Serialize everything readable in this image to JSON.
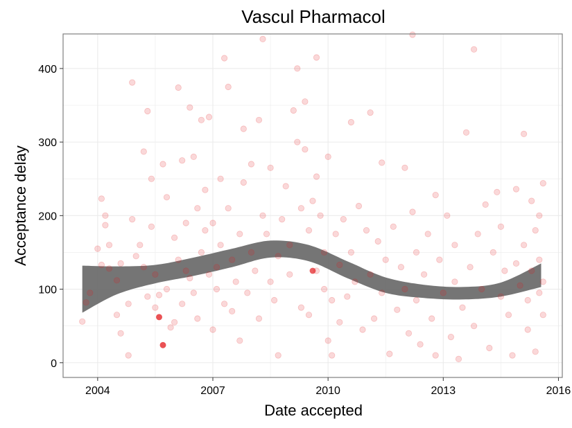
{
  "chart_data": {
    "type": "scatter",
    "title": "Vascul Pharmacol",
    "xlabel": "Date accepted",
    "ylabel": "Acceptance delay",
    "xlim": [
      2003.1,
      2016.1
    ],
    "ylim": [
      -20,
      447
    ],
    "x_ticks": [
      2004,
      2007,
      2010,
      2013,
      2016
    ],
    "y_ticks": [
      0,
      100,
      200,
      300,
      400
    ],
    "grid": true,
    "legend": "none",
    "colors": {
      "points": "#e31a1c",
      "band": "#6e6e6e",
      "grid": "#ebebeb",
      "frame": "#7f7f7f"
    },
    "points": [
      [
        2003.6,
        56
      ],
      [
        2003.7,
        82
      ],
      [
        2003.8,
        95
      ],
      [
        2004.0,
        155
      ],
      [
        2004.1,
        133
      ],
      [
        2004.1,
        223
      ],
      [
        2004.2,
        200
      ],
      [
        2004.2,
        187
      ],
      [
        2004.3,
        160
      ],
      [
        2004.3,
        128
      ],
      [
        2004.5,
        112
      ],
      [
        2004.5,
        65
      ],
      [
        2004.6,
        40
      ],
      [
        2004.6,
        135
      ],
      [
        2004.8,
        80
      ],
      [
        2004.8,
        10
      ],
      [
        2004.9,
        381
      ],
      [
        2004.9,
        195
      ],
      [
        2005.0,
        145
      ],
      [
        2005.1,
        160
      ],
      [
        2005.2,
        287
      ],
      [
        2005.2,
        130
      ],
      [
        2005.3,
        342
      ],
      [
        2005.3,
        90
      ],
      [
        2005.4,
        250
      ],
      [
        2005.4,
        185
      ],
      [
        2005.5,
        120
      ],
      [
        2005.5,
        75
      ],
      [
        2005.6,
        92
      ],
      [
        2005.6,
        62
      ],
      [
        2005.7,
        24
      ],
      [
        2005.7,
        270
      ],
      [
        2005.8,
        225
      ],
      [
        2005.8,
        100
      ],
      [
        2005.9,
        48
      ],
      [
        2006.0,
        55
      ],
      [
        2006.0,
        170
      ],
      [
        2006.1,
        374
      ],
      [
        2006.1,
        140
      ],
      [
        2006.2,
        80
      ],
      [
        2006.2,
        275
      ],
      [
        2006.3,
        190
      ],
      [
        2006.3,
        125
      ],
      [
        2006.4,
        347
      ],
      [
        2006.4,
        115
      ],
      [
        2006.5,
        95
      ],
      [
        2006.5,
        280
      ],
      [
        2006.6,
        210
      ],
      [
        2006.6,
        60
      ],
      [
        2006.7,
        150
      ],
      [
        2006.7,
        330
      ],
      [
        2006.8,
        235
      ],
      [
        2006.8,
        180
      ],
      [
        2006.9,
        120
      ],
      [
        2006.9,
        334
      ],
      [
        2007.0,
        45
      ],
      [
        2007.0,
        190
      ],
      [
        2007.1,
        130
      ],
      [
        2007.1,
        100
      ],
      [
        2007.2,
        250
      ],
      [
        2007.2,
        160
      ],
      [
        2007.3,
        414
      ],
      [
        2007.3,
        80
      ],
      [
        2007.4,
        375
      ],
      [
        2007.4,
        210
      ],
      [
        2007.5,
        140
      ],
      [
        2007.5,
        70
      ],
      [
        2007.6,
        110
      ],
      [
        2007.7,
        30
      ],
      [
        2007.7,
        175
      ],
      [
        2007.8,
        318
      ],
      [
        2007.8,
        245
      ],
      [
        2007.9,
        95
      ],
      [
        2008.0,
        150
      ],
      [
        2008.0,
        270
      ],
      [
        2008.1,
        125
      ],
      [
        2008.2,
        330
      ],
      [
        2008.2,
        60
      ],
      [
        2008.3,
        440
      ],
      [
        2008.3,
        200
      ],
      [
        2008.4,
        175
      ],
      [
        2008.5,
        110
      ],
      [
        2008.5,
        265
      ],
      [
        2008.6,
        85
      ],
      [
        2008.7,
        10
      ],
      [
        2008.7,
        145
      ],
      [
        2008.8,
        195
      ],
      [
        2008.9,
        240
      ],
      [
        2009.0,
        160
      ],
      [
        2009.0,
        120
      ],
      [
        2009.1,
        343
      ],
      [
        2009.2,
        400
      ],
      [
        2009.2,
        300
      ],
      [
        2009.3,
        75
      ],
      [
        2009.3,
        210
      ],
      [
        2009.4,
        355
      ],
      [
        2009.4,
        290
      ],
      [
        2009.5,
        180
      ],
      [
        2009.5,
        65
      ],
      [
        2009.6,
        220
      ],
      [
        2009.7,
        415
      ],
      [
        2009.7,
        253
      ],
      [
        2009.7,
        125
      ],
      [
        2009.8,
        200
      ],
      [
        2009.9,
        100
      ],
      [
        2009.9,
        150
      ],
      [
        2010.0,
        30
      ],
      [
        2010.0,
        280
      ],
      [
        2010.1,
        85
      ],
      [
        2010.1,
        10
      ],
      [
        2010.2,
        175
      ],
      [
        2010.3,
        133
      ],
      [
        2010.3,
        55
      ],
      [
        2010.4,
        195
      ],
      [
        2010.5,
        90
      ],
      [
        2010.6,
        327
      ],
      [
        2010.6,
        150
      ],
      [
        2010.7,
        110
      ],
      [
        2010.8,
        213
      ],
      [
        2010.9,
        45
      ],
      [
        2011.0,
        180
      ],
      [
        2011.1,
        340
      ],
      [
        2011.1,
        120
      ],
      [
        2011.2,
        60
      ],
      [
        2011.3,
        165
      ],
      [
        2011.4,
        272
      ],
      [
        2011.4,
        95
      ],
      [
        2011.5,
        140
      ],
      [
        2011.6,
        12
      ],
      [
        2011.7,
        185
      ],
      [
        2011.8,
        72
      ],
      [
        2011.9,
        130
      ],
      [
        2012.0,
        265
      ],
      [
        2012.0,
        100
      ],
      [
        2012.1,
        40
      ],
      [
        2012.2,
        446
      ],
      [
        2012.2,
        205
      ],
      [
        2012.3,
        150
      ],
      [
        2012.3,
        85
      ],
      [
        2012.4,
        25
      ],
      [
        2012.5,
        120
      ],
      [
        2012.6,
        175
      ],
      [
        2012.7,
        60
      ],
      [
        2012.8,
        228
      ],
      [
        2012.8,
        10
      ],
      [
        2012.9,
        140
      ],
      [
        2013.0,
        95
      ],
      [
        2013.1,
        200
      ],
      [
        2013.2,
        35
      ],
      [
        2013.3,
        160
      ],
      [
        2013.3,
        110
      ],
      [
        2013.4,
        5
      ],
      [
        2013.5,
        75
      ],
      [
        2013.6,
        313
      ],
      [
        2013.7,
        130
      ],
      [
        2013.8,
        426
      ],
      [
        2013.8,
        50
      ],
      [
        2013.9,
        175
      ],
      [
        2014.0,
        100
      ],
      [
        2014.1,
        215
      ],
      [
        2014.2,
        20
      ],
      [
        2014.3,
        150
      ],
      [
        2014.4,
        232
      ],
      [
        2014.5,
        90
      ],
      [
        2014.5,
        185
      ],
      [
        2014.6,
        125
      ],
      [
        2014.7,
        65
      ],
      [
        2014.8,
        10
      ],
      [
        2014.9,
        135
      ],
      [
        2014.9,
        236
      ],
      [
        2015.0,
        105
      ],
      [
        2015.1,
        311
      ],
      [
        2015.1,
        160
      ],
      [
        2015.2,
        45
      ],
      [
        2015.3,
        220
      ],
      [
        2015.3,
        125
      ],
      [
        2015.4,
        15
      ],
      [
        2015.4,
        180
      ],
      [
        2015.5,
        95
      ],
      [
        2015.5,
        140
      ],
      [
        2015.6,
        244
      ],
      [
        2015.6,
        65
      ],
      [
        2015.6,
        110
      ],
      [
        2015.5,
        200
      ],
      [
        2015.2,
        85
      ]
    ],
    "highlighted_points": [
      [
        2005.7,
        24
      ],
      [
        2005.6,
        62
      ],
      [
        2009.6,
        125
      ]
    ],
    "smooth_band": {
      "x": [
        2003.6,
        2004.5,
        2005.5,
        2006.5,
        2007.5,
        2008.5,
        2009.5,
        2010.5,
        2011.5,
        2012.5,
        2013.5,
        2014.5,
        2015.55
      ],
      "lower": [
        68,
        93,
        108,
        118,
        130,
        143,
        138,
        115,
        95,
        88,
        86,
        90,
        103
      ],
      "upper": [
        132,
        131,
        133,
        143,
        155,
        166,
        160,
        138,
        116,
        106,
        103,
        109,
        135
      ]
    }
  }
}
